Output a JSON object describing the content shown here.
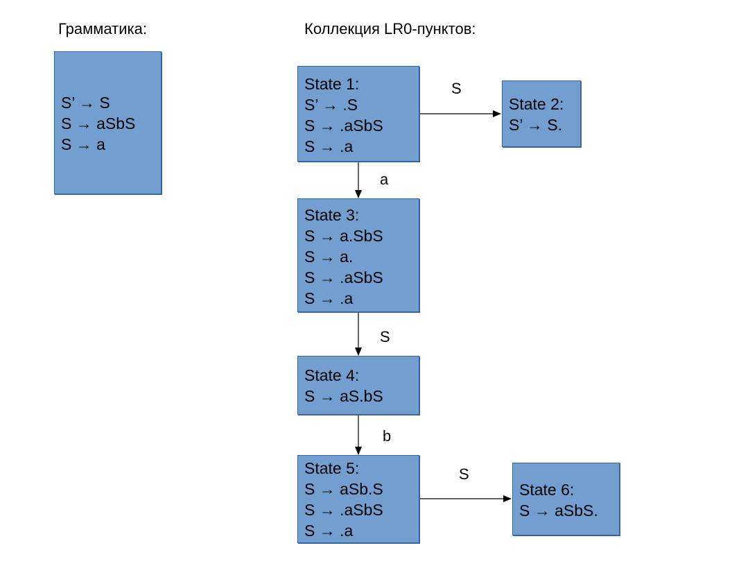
{
  "headings": {
    "grammar": "Грамматика:",
    "collection": "Коллекция LR0-пунктов:"
  },
  "grammar": {
    "rules": [
      "S’ → S",
      "S → aSbS",
      "S → a"
    ]
  },
  "states": [
    {
      "title": "State 1:",
      "items": [
        "S’ → .S",
        "S → .aSbS",
        "S → .a"
      ]
    },
    {
      "title": "State 2:",
      "items": [
        "S’ → S."
      ]
    },
    {
      "title": "State 3:",
      "items": [
        "S → a.SbS",
        "S → a.",
        "S → .aSbS",
        "S → .a"
      ]
    },
    {
      "title": "State 4:",
      "items": [
        "S → aS.bS"
      ]
    },
    {
      "title": "State 5:",
      "items": [
        "S → aSb.S",
        "S → .aSbS",
        "S → .a"
      ]
    },
    {
      "title": "State 6:",
      "items": [
        "S → aSbS."
      ]
    }
  ],
  "transitions": [
    {
      "from": "State 1",
      "to": "State 2",
      "symbol": "S"
    },
    {
      "from": "State 1",
      "to": "State 3",
      "symbol": "a"
    },
    {
      "from": "State 3",
      "to": "State 4",
      "symbol": "S"
    },
    {
      "from": "State 4",
      "to": "State 5",
      "symbol": "b"
    },
    {
      "from": "State 5",
      "to": "State 6",
      "symbol": "S"
    }
  ],
  "colors": {
    "box_fill": "#729fcf",
    "box_border": "#3465a4"
  }
}
